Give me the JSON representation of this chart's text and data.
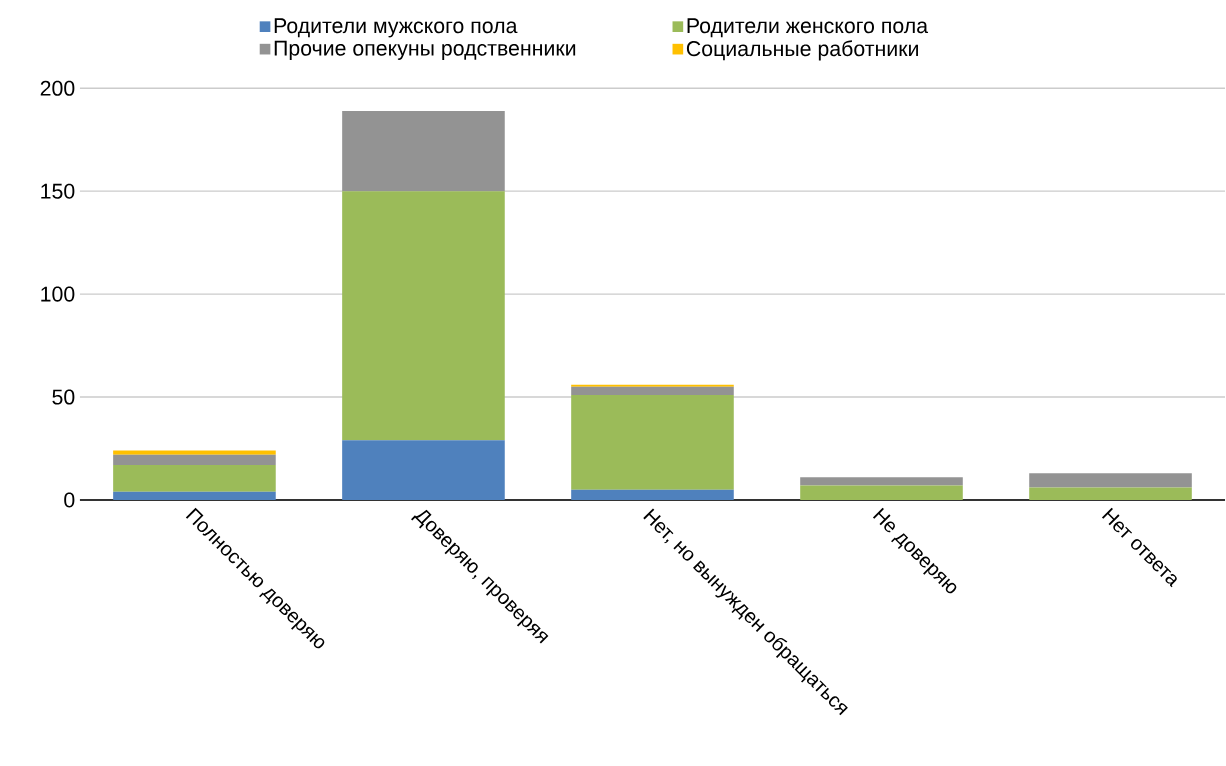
{
  "chart_data": {
    "type": "bar",
    "stacked": true,
    "grid": "y",
    "legend": "top",
    "categories": [
      "Полностью доверяю",
      "Доверяю, проверяя",
      "Нет, но вынужден обращаться",
      "Не доверяю",
      "Нет ответа"
    ],
    "series": [
      {
        "name": "Родители мужского пола",
        "color": "#4f81bd",
        "values": [
          4,
          29,
          5,
          0,
          0
        ]
      },
      {
        "name": "Родители женского пола",
        "color": "#9bbb59",
        "values": [
          13,
          121,
          46,
          7,
          6
        ]
      },
      {
        "name": "Прочие опекуны родственники",
        "color": "#939393",
        "values": [
          5,
          39,
          4,
          4,
          7
        ]
      },
      {
        "name": "Социальные работники",
        "color": "#ffc000",
        "values": [
          2,
          0,
          1,
          0,
          0
        ]
      }
    ],
    "ylim": [
      0,
      200
    ],
    "yticks": [
      0,
      50,
      100,
      150,
      200
    ]
  }
}
